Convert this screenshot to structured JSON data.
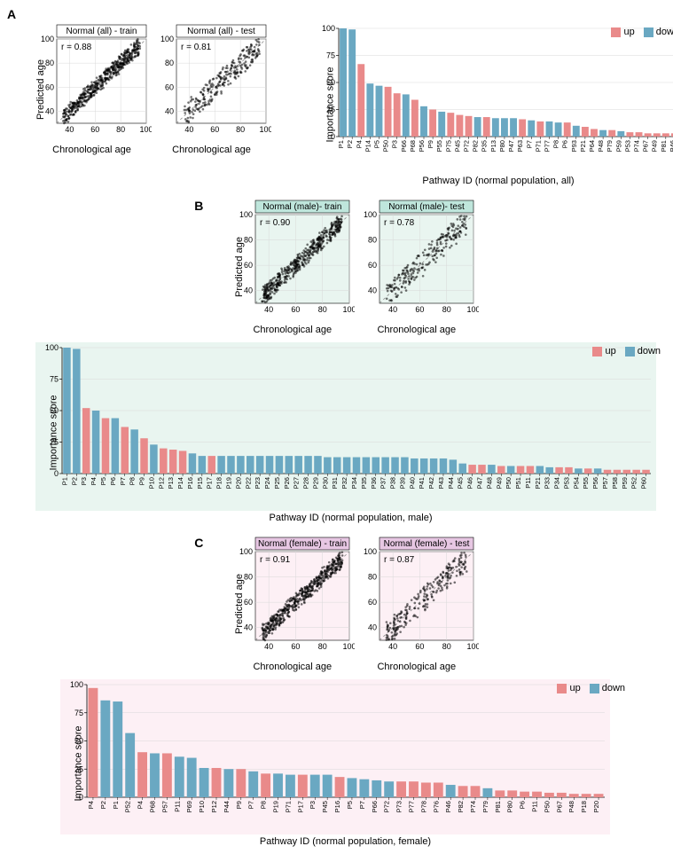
{
  "colors": {
    "up": "#e98a8a",
    "down": "#6aa8c2",
    "point": "#000000",
    "grid": "#d9d9d9",
    "diag": "#888888",
    "panelA_bg": "#ffffff",
    "panelB_bg": "#e9f5f0",
    "panelB_header": "#bfe6dc",
    "panelC_bg": "#fdf0f5",
    "panelC_header": "#e7c7e3",
    "axis": "#000000",
    "header_border": "#000000"
  },
  "fonts": {
    "axis_label": 11,
    "tick": 9,
    "header": 10,
    "panel_label": 14,
    "legend": 11
  },
  "axes": {
    "scatter": {
      "min": 30,
      "max": 100,
      "ticks": [
        40,
        60,
        80,
        100
      ]
    },
    "bar_y": {
      "min": 0,
      "max": 100,
      "ticks": [
        0,
        25,
        50,
        75,
        100
      ]
    }
  },
  "labels": {
    "predicted": "Predicted age",
    "chron": "Chronological age",
    "importance": "Importance score",
    "path_all": "Pathway ID (normal population, all)",
    "path_male": "Pathway ID (normal population, male)",
    "path_female": "Pathway ID (normal population, female)",
    "legend_up": "up",
    "legend_down": "down"
  },
  "panelA": {
    "label": "A",
    "scatter": [
      {
        "title": "Normal (all) - train",
        "r": "r = 0.88",
        "seed": 1,
        "n": 520
      },
      {
        "title": "Normal (all) - test",
        "r": "r = 0.81",
        "seed": 2,
        "n": 260
      }
    ],
    "bars": [
      {
        "id": "P1",
        "v": 100,
        "d": "down"
      },
      {
        "id": "P2",
        "v": 99,
        "d": "down"
      },
      {
        "id": "P4",
        "v": 67,
        "d": "up"
      },
      {
        "id": "P14",
        "v": 49,
        "d": "down"
      },
      {
        "id": "P5",
        "v": 47,
        "d": "down"
      },
      {
        "id": "P50",
        "v": 46,
        "d": "up"
      },
      {
        "id": "P3",
        "v": 40,
        "d": "up"
      },
      {
        "id": "P66",
        "v": 39,
        "d": "down"
      },
      {
        "id": "P68",
        "v": 34,
        "d": "up"
      },
      {
        "id": "P56",
        "v": 28,
        "d": "down"
      },
      {
        "id": "P9",
        "v": 25,
        "d": "up"
      },
      {
        "id": "P55",
        "v": 23,
        "d": "down"
      },
      {
        "id": "P75",
        "v": 22,
        "d": "up"
      },
      {
        "id": "P45",
        "v": 20,
        "d": "up"
      },
      {
        "id": "P72",
        "v": 19,
        "d": "up"
      },
      {
        "id": "P82",
        "v": 18,
        "d": "down"
      },
      {
        "id": "P35",
        "v": 18,
        "d": "up"
      },
      {
        "id": "P13",
        "v": 17,
        "d": "down"
      },
      {
        "id": "P80",
        "v": 17,
        "d": "down"
      },
      {
        "id": "P47",
        "v": 17,
        "d": "down"
      },
      {
        "id": "P63",
        "v": 16,
        "d": "up"
      },
      {
        "id": "P7",
        "v": 15,
        "d": "down"
      },
      {
        "id": "P71",
        "v": 14,
        "d": "up"
      },
      {
        "id": "P77",
        "v": 14,
        "d": "down"
      },
      {
        "id": "P8",
        "v": 13,
        "d": "down"
      },
      {
        "id": "P6",
        "v": 13,
        "d": "up"
      },
      {
        "id": "P93",
        "v": 10,
        "d": "down"
      },
      {
        "id": "P21",
        "v": 9,
        "d": "up"
      },
      {
        "id": "P64",
        "v": 7,
        "d": "up"
      },
      {
        "id": "P48",
        "v": 6,
        "d": "down"
      },
      {
        "id": "P79",
        "v": 6,
        "d": "up"
      },
      {
        "id": "P59",
        "v": 5,
        "d": "down"
      },
      {
        "id": "P53",
        "v": 4,
        "d": "up"
      },
      {
        "id": "P74",
        "v": 4,
        "d": "up"
      },
      {
        "id": "P67",
        "v": 3,
        "d": "up"
      },
      {
        "id": "P49",
        "v": 3,
        "d": "up"
      },
      {
        "id": "P81",
        "v": 3,
        "d": "up"
      },
      {
        "id": "P46",
        "v": 3,
        "d": "up"
      }
    ]
  },
  "panelB": {
    "label": "B",
    "scatter": [
      {
        "title": "Normal (male)- train",
        "r": "r = 0.90",
        "seed": 3,
        "n": 480
      },
      {
        "title": "Normal (male)- test",
        "r": "r = 0.78",
        "seed": 4,
        "n": 230
      }
    ],
    "bars": [
      {
        "id": "P1",
        "v": 100,
        "d": "down"
      },
      {
        "id": "P2",
        "v": 99,
        "d": "down"
      },
      {
        "id": "P3",
        "v": 52,
        "d": "up"
      },
      {
        "id": "P4",
        "v": 50,
        "d": "down"
      },
      {
        "id": "P5",
        "v": 44,
        "d": "up"
      },
      {
        "id": "P6",
        "v": 44,
        "d": "down"
      },
      {
        "id": "P7",
        "v": 37,
        "d": "up"
      },
      {
        "id": "P8",
        "v": 35,
        "d": "down"
      },
      {
        "id": "P9",
        "v": 28,
        "d": "up"
      },
      {
        "id": "P10",
        "v": 23,
        "d": "down"
      },
      {
        "id": "P12",
        "v": 20,
        "d": "up"
      },
      {
        "id": "P13",
        "v": 19,
        "d": "up"
      },
      {
        "id": "P14",
        "v": 18,
        "d": "up"
      },
      {
        "id": "P16",
        "v": 16,
        "d": "down"
      },
      {
        "id": "P15",
        "v": 14,
        "d": "down"
      },
      {
        "id": "P17",
        "v": 14,
        "d": "up"
      },
      {
        "id": "P18",
        "v": 14,
        "d": "down"
      },
      {
        "id": "P19",
        "v": 14,
        "d": "down"
      },
      {
        "id": "P20",
        "v": 14,
        "d": "down"
      },
      {
        "id": "P22",
        "v": 14,
        "d": "down"
      },
      {
        "id": "P23",
        "v": 14,
        "d": "down"
      },
      {
        "id": "P24",
        "v": 14,
        "d": "down"
      },
      {
        "id": "P25",
        "v": 14,
        "d": "down"
      },
      {
        "id": "P26",
        "v": 14,
        "d": "down"
      },
      {
        "id": "P27",
        "v": 14,
        "d": "down"
      },
      {
        "id": "P28",
        "v": 14,
        "d": "down"
      },
      {
        "id": "P29",
        "v": 14,
        "d": "down"
      },
      {
        "id": "P30",
        "v": 13,
        "d": "down"
      },
      {
        "id": "P31",
        "v": 13,
        "d": "down"
      },
      {
        "id": "P32",
        "v": 13,
        "d": "down"
      },
      {
        "id": "P34",
        "v": 13,
        "d": "down"
      },
      {
        "id": "P35",
        "v": 13,
        "d": "down"
      },
      {
        "id": "P36",
        "v": 13,
        "d": "down"
      },
      {
        "id": "P37",
        "v": 13,
        "d": "down"
      },
      {
        "id": "P38",
        "v": 13,
        "d": "down"
      },
      {
        "id": "P39",
        "v": 13,
        "d": "down"
      },
      {
        "id": "P40",
        "v": 12,
        "d": "down"
      },
      {
        "id": "P41",
        "v": 12,
        "d": "down"
      },
      {
        "id": "P42",
        "v": 12,
        "d": "down"
      },
      {
        "id": "P43",
        "v": 12,
        "d": "down"
      },
      {
        "id": "P44",
        "v": 11,
        "d": "down"
      },
      {
        "id": "P45",
        "v": 8,
        "d": "down"
      },
      {
        "id": "P46",
        "v": 7,
        "d": "up"
      },
      {
        "id": "P47",
        "v": 7,
        "d": "up"
      },
      {
        "id": "P48",
        "v": 7,
        "d": "down"
      },
      {
        "id": "P49",
        "v": 6,
        "d": "up"
      },
      {
        "id": "P50",
        "v": 6,
        "d": "down"
      },
      {
        "id": "P51",
        "v": 6,
        "d": "up"
      },
      {
        "id": "P11",
        "v": 6,
        "d": "up"
      },
      {
        "id": "P21",
        "v": 6,
        "d": "down"
      },
      {
        "id": "P33",
        "v": 5,
        "d": "down"
      },
      {
        "id": "P34",
        "v": 5,
        "d": "up"
      },
      {
        "id": "P53",
        "v": 5,
        "d": "up"
      },
      {
        "id": "P54",
        "v": 4,
        "d": "down"
      },
      {
        "id": "P55",
        "v": 4,
        "d": "up"
      },
      {
        "id": "P56",
        "v": 4,
        "d": "down"
      },
      {
        "id": "P57",
        "v": 3,
        "d": "up"
      },
      {
        "id": "P58",
        "v": 3,
        "d": "up"
      },
      {
        "id": "P59",
        "v": 3,
        "d": "up"
      },
      {
        "id": "P52",
        "v": 3,
        "d": "up"
      },
      {
        "id": "P60",
        "v": 3,
        "d": "up"
      }
    ]
  },
  "panelC": {
    "label": "C",
    "scatter": [
      {
        "title": "Normal (female) - train",
        "r": "r = 0.91",
        "seed": 5,
        "n": 500
      },
      {
        "title": "Normal (female) - test",
        "r": "r = 0.87",
        "seed": 6,
        "n": 240
      }
    ],
    "bars": [
      {
        "id": "P4",
        "v": 97,
        "d": "up"
      },
      {
        "id": "P2",
        "v": 86,
        "d": "down"
      },
      {
        "id": "P1",
        "v": 85,
        "d": "down"
      },
      {
        "id": "P52",
        "v": 57,
        "d": "down"
      },
      {
        "id": "P4",
        "v": 40,
        "d": "up"
      },
      {
        "id": "P68",
        "v": 39,
        "d": "down"
      },
      {
        "id": "P57",
        "v": 39,
        "d": "up"
      },
      {
        "id": "P11",
        "v": 36,
        "d": "down"
      },
      {
        "id": "P69",
        "v": 35,
        "d": "down"
      },
      {
        "id": "P10",
        "v": 26,
        "d": "down"
      },
      {
        "id": "P12",
        "v": 26,
        "d": "up"
      },
      {
        "id": "P44",
        "v": 25,
        "d": "down"
      },
      {
        "id": "P9",
        "v": 25,
        "d": "up"
      },
      {
        "id": "P7",
        "v": 23,
        "d": "down"
      },
      {
        "id": "P8",
        "v": 21,
        "d": "up"
      },
      {
        "id": "P19",
        "v": 21,
        "d": "down"
      },
      {
        "id": "P71",
        "v": 20,
        "d": "down"
      },
      {
        "id": "P17",
        "v": 20,
        "d": "up"
      },
      {
        "id": "P3",
        "v": 20,
        "d": "down"
      },
      {
        "id": "P45",
        "v": 20,
        "d": "down"
      },
      {
        "id": "P16",
        "v": 18,
        "d": "up"
      },
      {
        "id": "P5",
        "v": 17,
        "d": "down"
      },
      {
        "id": "P7",
        "v": 16,
        "d": "down"
      },
      {
        "id": "P66",
        "v": 15,
        "d": "down"
      },
      {
        "id": "P72",
        "v": 14,
        "d": "down"
      },
      {
        "id": "P73",
        "v": 14,
        "d": "up"
      },
      {
        "id": "P77",
        "v": 14,
        "d": "up"
      },
      {
        "id": "P78",
        "v": 13,
        "d": "up"
      },
      {
        "id": "P76",
        "v": 13,
        "d": "up"
      },
      {
        "id": "P46",
        "v": 11,
        "d": "down"
      },
      {
        "id": "P82",
        "v": 10,
        "d": "up"
      },
      {
        "id": "P74",
        "v": 10,
        "d": "up"
      },
      {
        "id": "P79",
        "v": 8,
        "d": "down"
      },
      {
        "id": "P81",
        "v": 6,
        "d": "up"
      },
      {
        "id": "P80",
        "v": 6,
        "d": "up"
      },
      {
        "id": "P6",
        "v": 5,
        "d": "up"
      },
      {
        "id": "P11",
        "v": 5,
        "d": "up"
      },
      {
        "id": "P50",
        "v": 4,
        "d": "up"
      },
      {
        "id": "P67",
        "v": 4,
        "d": "up"
      },
      {
        "id": "P48",
        "v": 3,
        "d": "up"
      },
      {
        "id": "P18",
        "v": 3,
        "d": "up"
      },
      {
        "id": "P20",
        "v": 3,
        "d": "up"
      }
    ]
  }
}
